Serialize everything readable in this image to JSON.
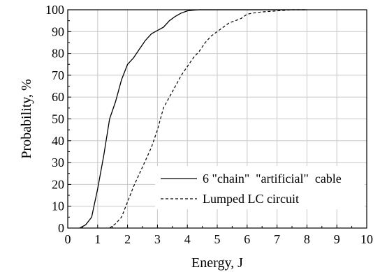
{
  "chart_data": {
    "type": "line",
    "title": "",
    "xlabel": "Energy, J",
    "ylabel": "Probability, %",
    "xlim": [
      0,
      10
    ],
    "ylim": [
      0,
      100
    ],
    "xticks": [
      0,
      1,
      2,
      3,
      4,
      5,
      6,
      7,
      8,
      9,
      10
    ],
    "yticks": [
      0,
      10,
      20,
      30,
      40,
      50,
      60,
      70,
      80,
      90,
      100
    ],
    "grid": true,
    "legend_position": "bottom-right",
    "series": [
      {
        "name": "6 \"chain\"  \"artificial\"  cable",
        "style": "solid",
        "x": [
          0.4,
          0.6,
          0.8,
          1.0,
          1.2,
          1.4,
          1.6,
          1.8,
          2.0,
          2.2,
          2.4,
          2.6,
          2.8,
          3.0,
          3.2,
          3.4,
          3.6,
          3.8,
          4.0,
          4.2,
          4.4,
          4.6,
          4.8,
          5.0,
          5.5,
          6.0,
          7.0,
          8.0
        ],
        "y": [
          0,
          1.5,
          5,
          18,
          33,
          50,
          58,
          68,
          75,
          78,
          82,
          86,
          89,
          90.5,
          92,
          95,
          97,
          98.5,
          99.5,
          99.8,
          100,
          100,
          100,
          100,
          100,
          100,
          100,
          100
        ]
      },
      {
        "name": "Lumped LC circuit",
        "style": "dashed",
        "x": [
          1.4,
          1.6,
          1.8,
          2.0,
          2.2,
          2.4,
          2.6,
          2.8,
          3.0,
          3.2,
          3.4,
          3.6,
          3.8,
          4.0,
          4.2,
          4.4,
          4.6,
          4.8,
          5.0,
          5.2,
          5.4,
          5.6,
          5.8,
          6.0,
          6.2,
          6.5,
          7.0,
          7.5,
          8.0
        ],
        "y": [
          0,
          2,
          5,
          12,
          19,
          25,
          31,
          37,
          45,
          55,
          60,
          65,
          70,
          74,
          78,
          81,
          85,
          88,
          90,
          92,
          94,
          95,
          96,
          98,
          98.5,
          99,
          99.5,
          100,
          100
        ]
      }
    ]
  }
}
